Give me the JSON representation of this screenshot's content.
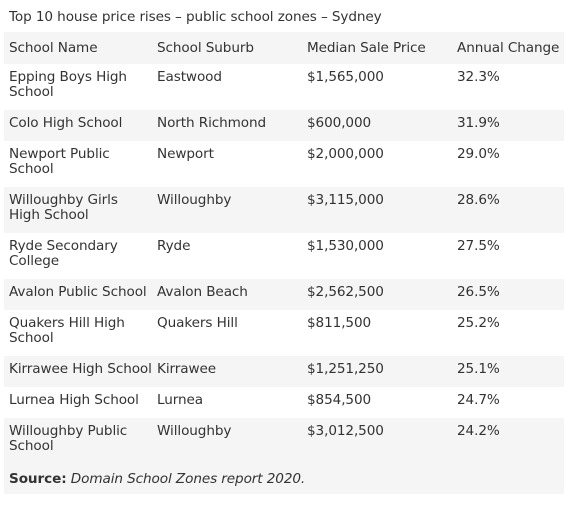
{
  "caption": "Top 10 house price rises – public school zones – Sydney",
  "columns": [
    "School Name",
    "School Suburb",
    "Median Sale Price",
    "Annual Change"
  ],
  "rows": [
    {
      "school": "Epping Boys High School",
      "suburb": "Eastwood",
      "price": "$1,565,000",
      "change": "32.3%"
    },
    {
      "school": "Colo High School",
      "suburb": "North Richmond",
      "price": "$600,000",
      "change": "31.9%"
    },
    {
      "school": "Newport Public School",
      "suburb": "Newport",
      "price": "$2,000,000",
      "change": "29.0%"
    },
    {
      "school": "Willoughby Girls High School",
      "suburb": "Willoughby",
      "price": "$3,115,000",
      "change": "28.6%"
    },
    {
      "school": "Ryde Secondary College",
      "suburb": "Ryde",
      "price": "$1,530,000",
      "change": "27.5%"
    },
    {
      "school": "Avalon Public School",
      "suburb": "Avalon Beach",
      "price": "$2,562,500",
      "change": "26.5%"
    },
    {
      "school": "Quakers Hill High School",
      "suburb": "Quakers Hill",
      "price": "$811,500",
      "change": "25.2%"
    },
    {
      "school": "Kirrawee High School",
      "suburb": "Kirrawee",
      "price": "$1,251,250",
      "change": "25.1%"
    },
    {
      "school": "Lurnea High School",
      "suburb": "Lurnea",
      "price": "$854,500",
      "change": "24.7%"
    },
    {
      "school": "Willoughby Public School",
      "suburb": "Willoughby",
      "price": "$3,012,500",
      "change": "24.2%"
    }
  ],
  "source": {
    "label": "Source:",
    "text": "Domain School Zones report 2020."
  }
}
